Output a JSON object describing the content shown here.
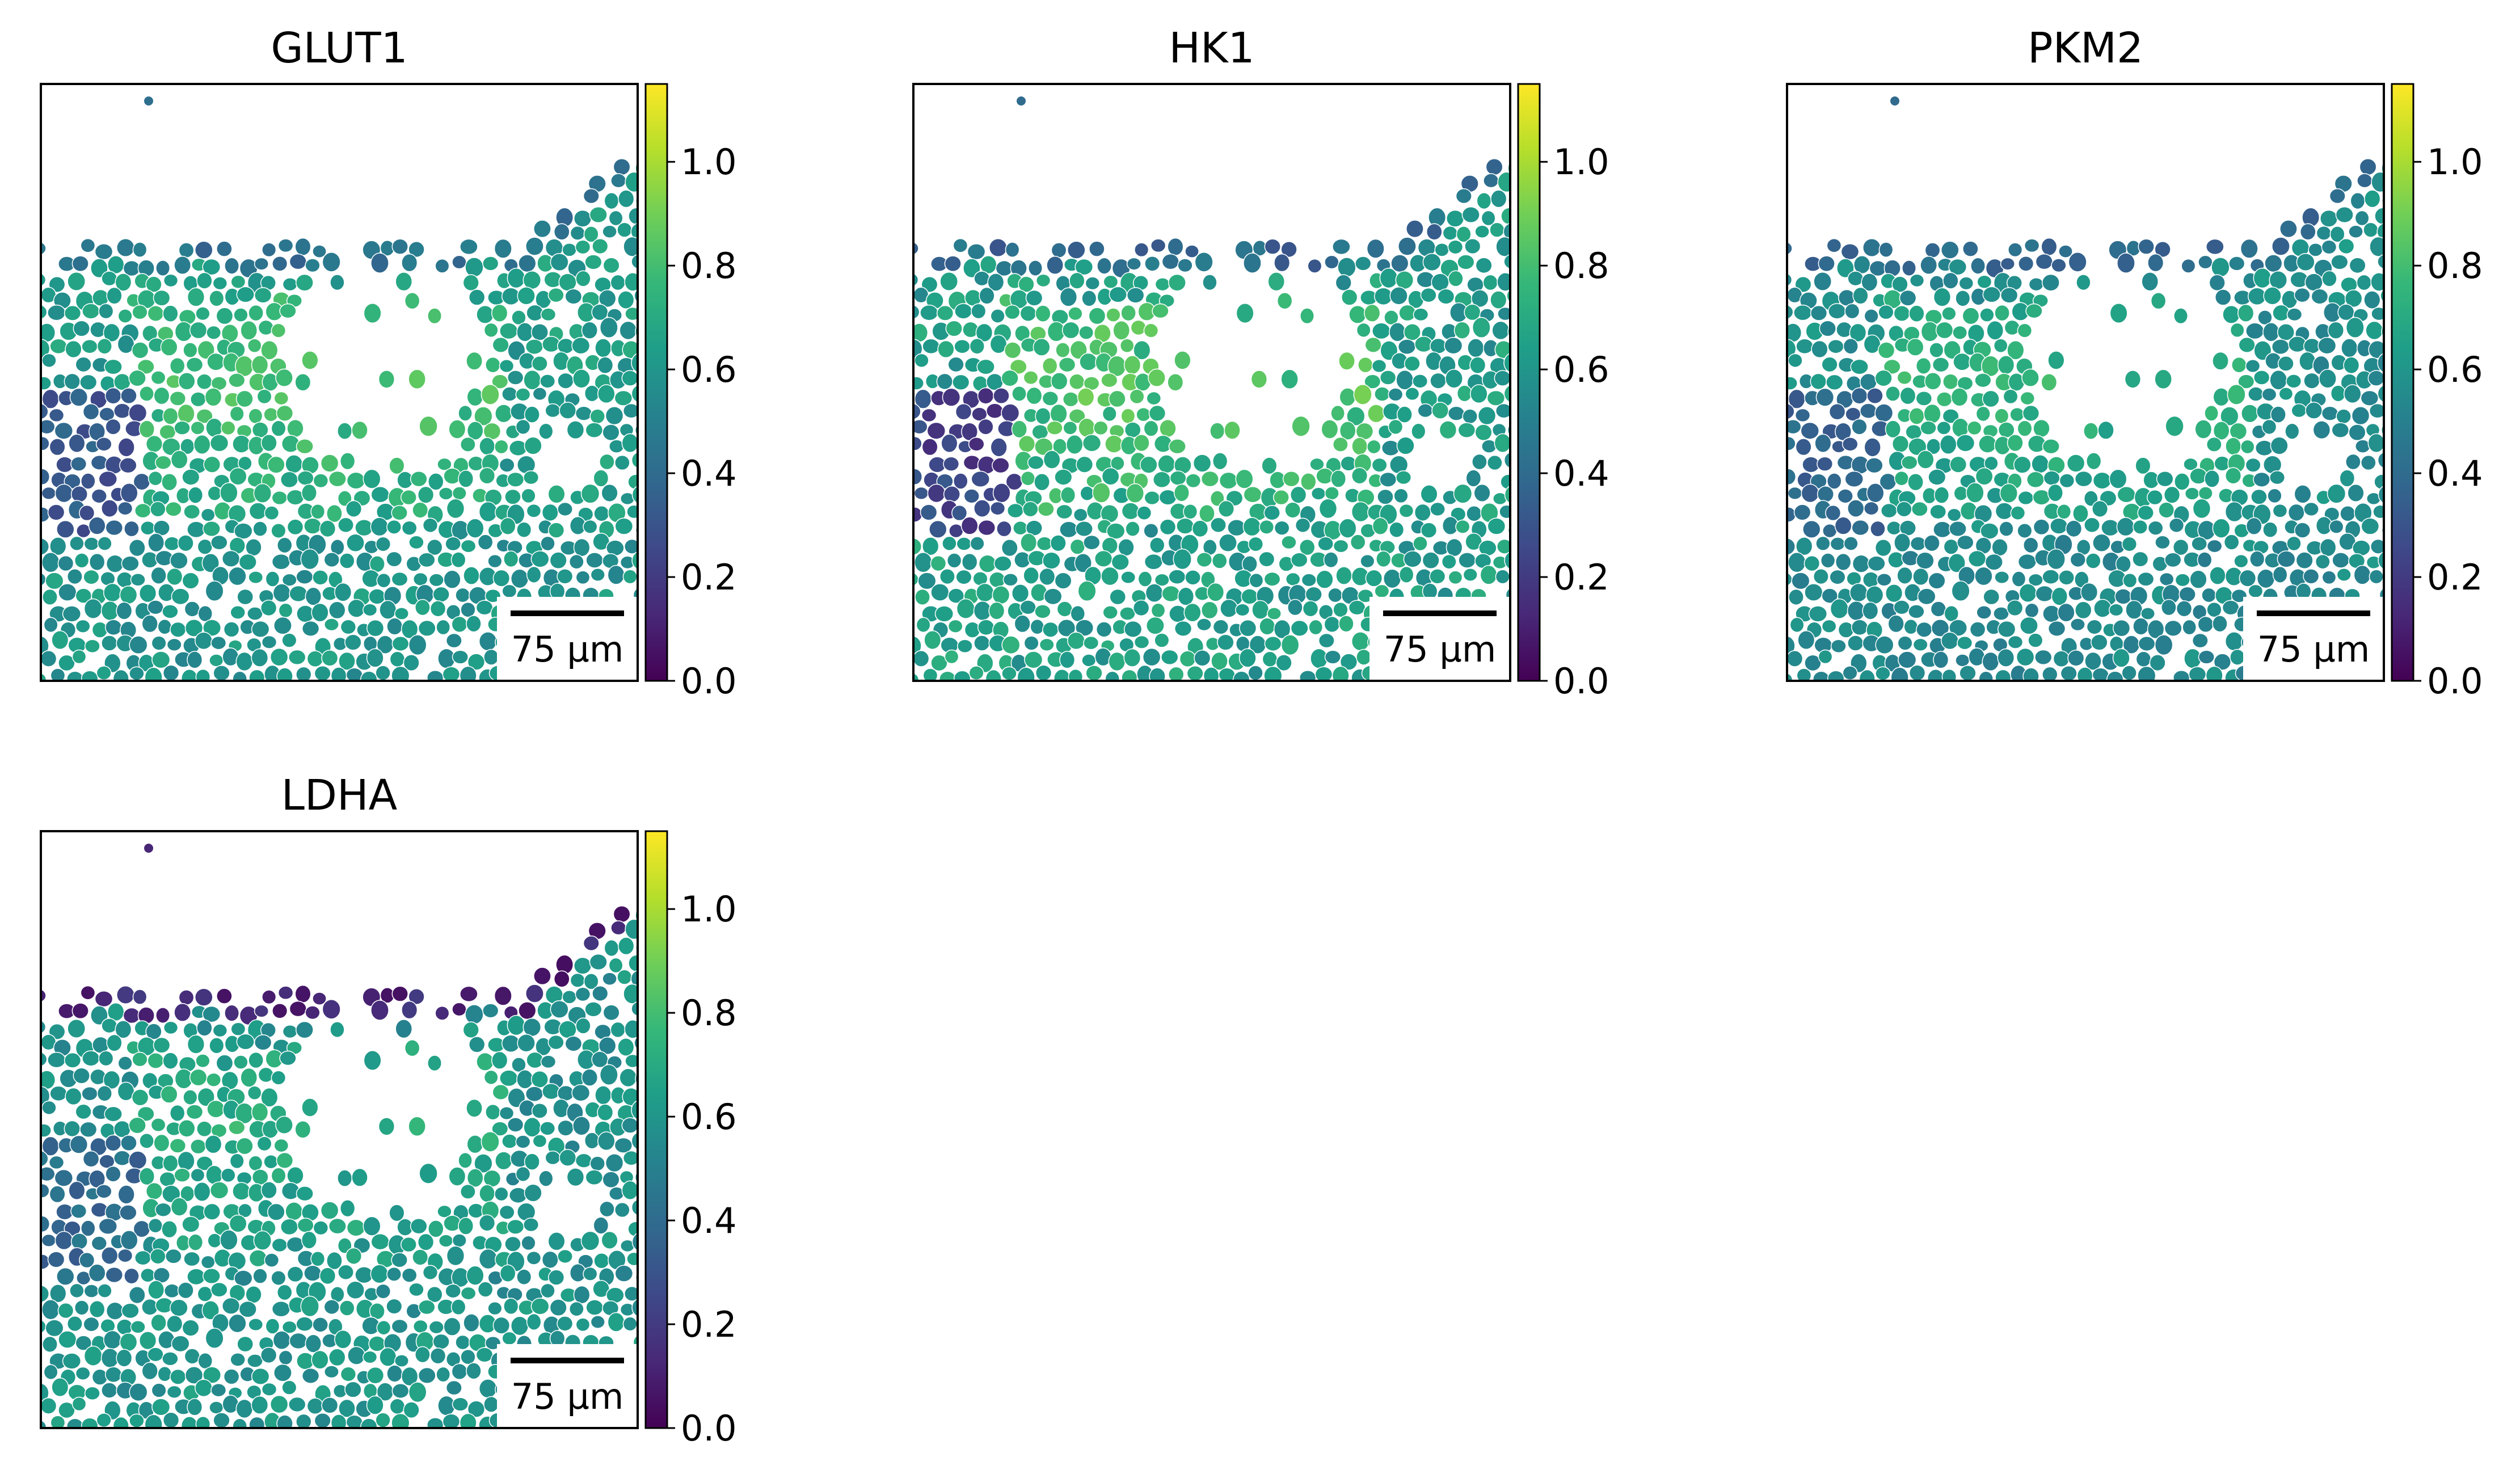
{
  "chart_data": {
    "type": "heatmap",
    "subtype": "spatial-scatter",
    "colormap": "viridis",
    "colors": {
      "viridis": [
        "#440154",
        "#482878",
        "#3e4989",
        "#31688e",
        "#26828e",
        "#1f9e89",
        "#35b779",
        "#6ece58",
        "#b5de2b",
        "#fde725"
      ],
      "background": "#ffffff",
      "frame": "#000000",
      "cell_edge": "#ffffff"
    },
    "colorbar": {
      "range": [
        0.0,
        1.15
      ],
      "ticks": [
        "0.0",
        "0.2",
        "0.4",
        "0.6",
        "0.8",
        "1.0"
      ]
    },
    "scalebar_label": "75 µm",
    "panels": [
      {
        "title": "GLUT1",
        "profile": {
          "top_band": 0.42,
          "main": 0.63,
          "upper_mid": 0.8,
          "left_pocket": 0.32,
          "lower": 0.6,
          "noise": 0.08
        }
      },
      {
        "title": "HK1",
        "profile": {
          "top_band": 0.4,
          "main": 0.63,
          "upper_mid": 0.82,
          "left_pocket": 0.24,
          "lower": 0.64,
          "noise": 0.1
        }
      },
      {
        "title": "PKM2",
        "profile": {
          "top_band": 0.4,
          "main": 0.57,
          "upper_mid": 0.74,
          "left_pocket": 0.38,
          "lower": 0.55,
          "noise": 0.07
        }
      },
      {
        "title": "LDHA",
        "profile": {
          "top_band": 0.12,
          "main": 0.58,
          "upper_mid": 0.72,
          "left_pocket": 0.4,
          "lower": 0.6,
          "noise": 0.08
        }
      }
    ]
  }
}
